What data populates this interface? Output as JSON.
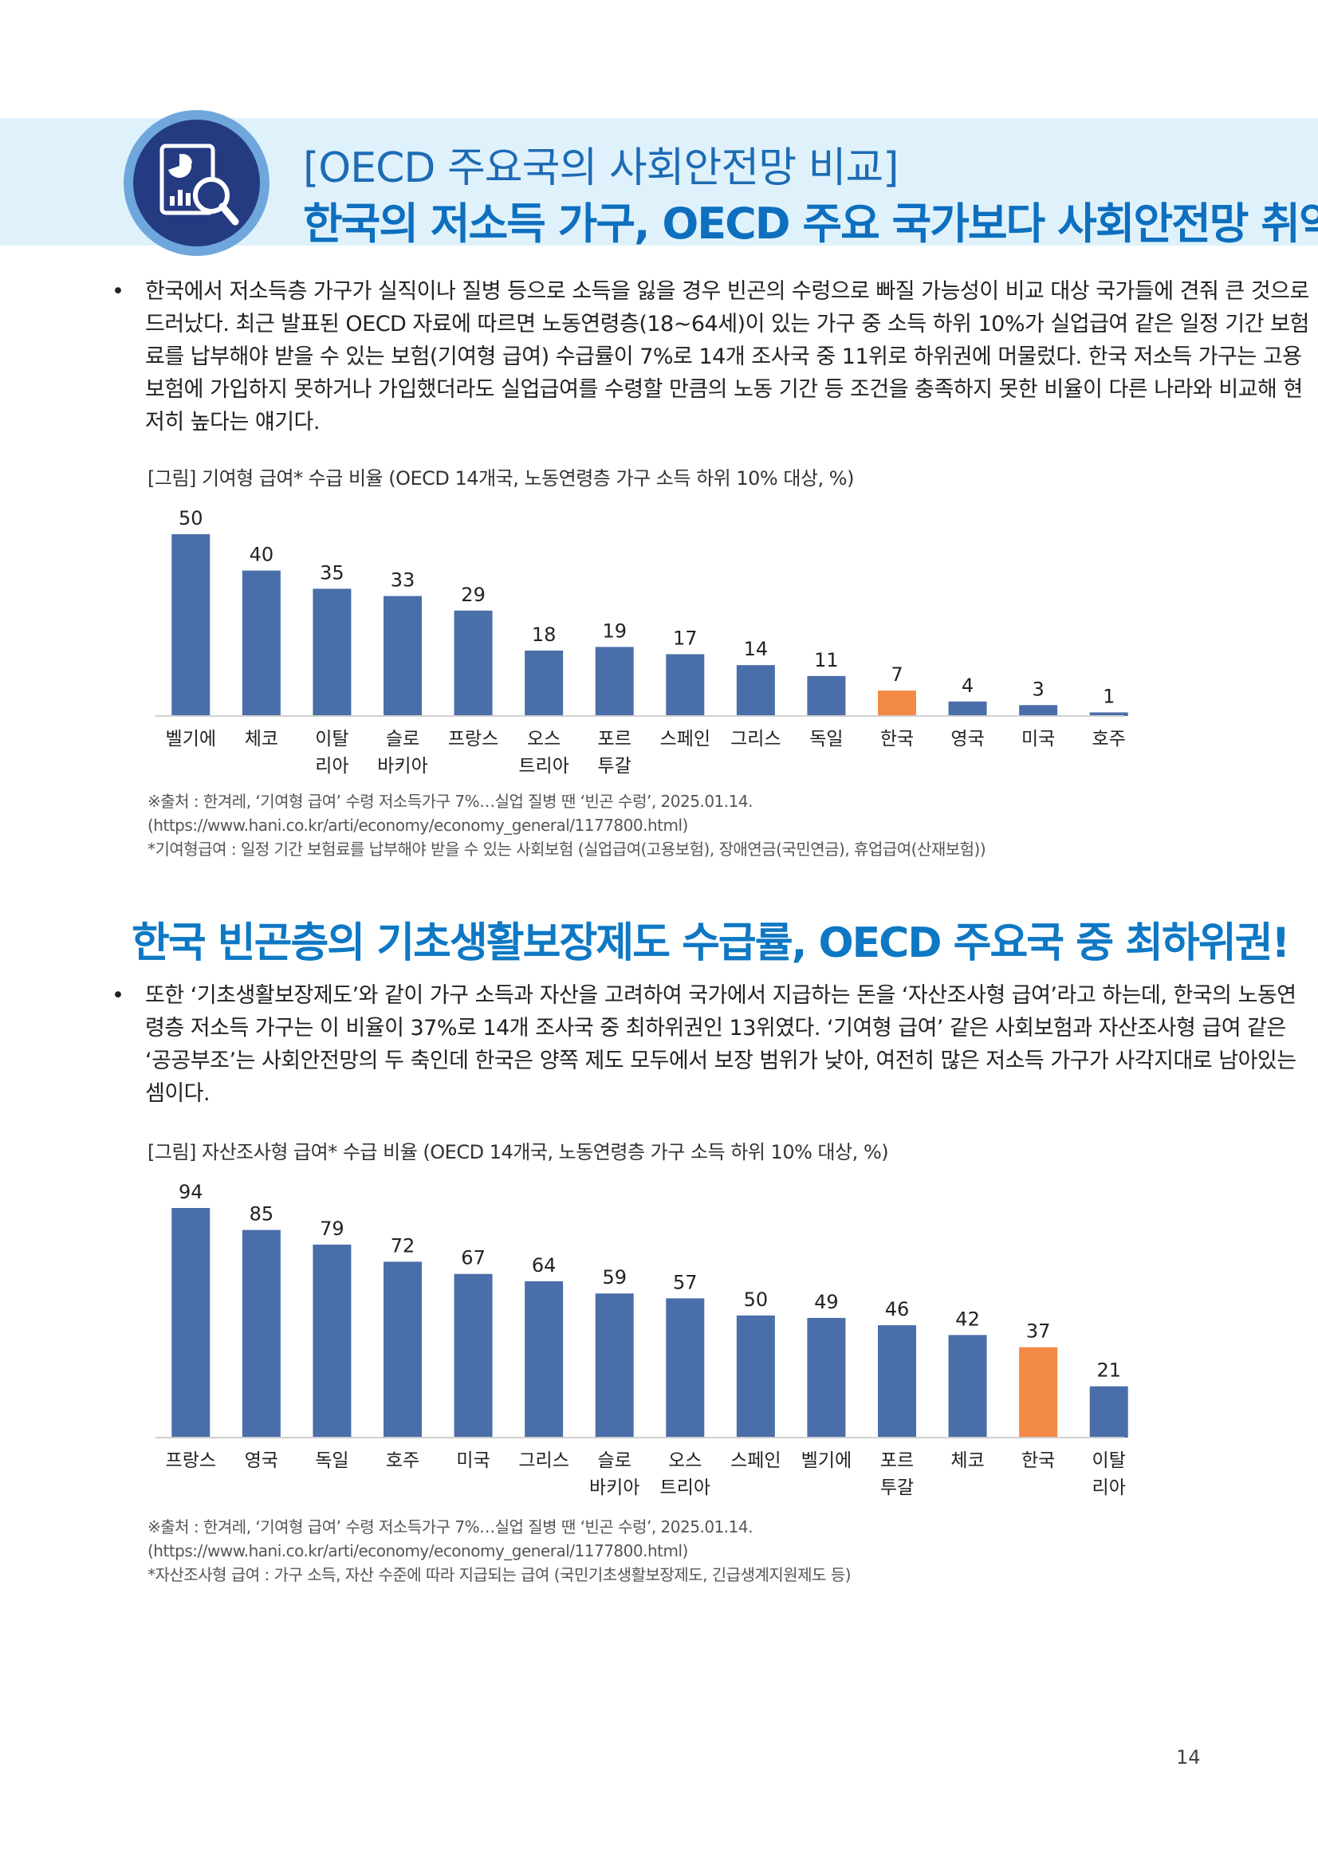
{
  "header": {
    "subtitle": "[OECD 주요국의 사회안전망 비교]",
    "title": "한국의 저소득 가구, OECD 주요 국가보다 사회안전망 취약!"
  },
  "section1": {
    "bullet": "•",
    "paragraph": "한국에서 저소득층 가구가 실직이나 질병 등으로 소득을 잃을 경우 빈곤의 수렁으로 빠질 가능성이 비교 대상 국가들에 견줘 큰 것으로 드러났다. 최근 발표된 OECD 자료에 따르면 노동연령층(18~64세)이 있는 가구 중 소득 하위 10%가 실업급여 같은 일정 기간 보험료를 납부해야 받을 수 있는 보험(기여형 급여) 수급률이 7%로 14개 조사국 중 11위로 하위권에 머물렀다. 한국 저소득 가구는 고용보험에 가입하지 못하거나 가입했더라도 실업급여를 수령할 만큼의 노동 기간 등 조건을 충족하지 못한 비율이 다른 나라와 비교해 현저히 높다는 얘기다.",
    "figure_title": "[그림] 기여형 급여* 수급 비율 (OECD 14개국, 노동연령층 가구 소득 하위 10% 대상, %)",
    "source": "※출처 : 한겨레, ‘기여형 급여’ 수령 저소득가구 7%…실업 질병 땐 ‘빈곤 수렁’, 2025.01.14. (https://www.hani.co.kr/arti/economy/economy_general/1177800.html)",
    "footnote": "*기여형급여 : 일정 기간 보험료를 납부해야 받을 수 있는 사회보험 (실업급여(고용보험), 장애연금(국민연금), 휴업급여(산재보험))"
  },
  "section2": {
    "title": "한국 빈곤층의 기초생활보장제도 수급률, OECD 주요국 중 최하위권!",
    "bullet": "•",
    "paragraph": "또한 ‘기초생활보장제도’와 같이 가구 소득과 자산을 고려하여 국가에서 지급하는 돈을 ‘자산조사형 급여’라고 하는데, 한국의 노동연령층 저소득 가구는 이 비율이 37%로 14개 조사국 중 최하위권인 13위였다. ‘기여형 급여’ 같은 사회보험과 자산조사형 급여 같은 ‘공공부조’는 사회안전망의 두 축인데 한국은 양쪽 제도 모두에서 보장 범위가 낮아, 여전히 많은 저소득 가구가 사각지대로 남아있는 셈이다.",
    "figure_title": "[그림] 자산조사형 급여* 수급 비율 (OECD 14개국, 노동연령층 가구 소득 하위 10% 대상, %)",
    "source": "※출처 : 한겨레, ‘기여형 급여’ 수령 저소득가구 7%…실업 질병 땐 ‘빈곤 수렁’, 2025.01.14. (https://www.hani.co.kr/arti/economy/economy_general/1177800.html)",
    "footnote": "*자산조사형 급여 : 가구 소득, 자산 수준에 따라 지급되는 급여 (국민기초생활보장제도, 긴급생계지원제도 등)"
  },
  "page_number": "14",
  "colors": {
    "bar": "#4a6ea9",
    "highlight": "#f28a45",
    "axis": "#d0d0d0"
  },
  "icons": {
    "badge": "report-search-icon"
  },
  "chart_data": [
    {
      "type": "bar",
      "categories": [
        [
          "벨기에"
        ],
        [
          "체코"
        ],
        [
          "이탈",
          "리아"
        ],
        [
          "슬로",
          "바키아"
        ],
        [
          "프랑스"
        ],
        [
          "오스",
          "트리아"
        ],
        [
          "포르",
          "투갈"
        ],
        [
          "스페인"
        ],
        [
          "그리스"
        ],
        [
          "독일"
        ],
        [
          "한국"
        ],
        [
          "영국"
        ],
        [
          "미국"
        ],
        [
          "호주"
        ]
      ],
      "values": [
        50,
        40,
        35,
        33,
        29,
        18,
        19,
        17,
        14,
        11,
        7,
        4,
        3,
        1
      ],
      "highlight_index": 10,
      "ylim": [
        0,
        50
      ],
      "data_labels": true
    },
    {
      "type": "bar",
      "categories": [
        [
          "프랑스"
        ],
        [
          "영국"
        ],
        [
          "독일"
        ],
        [
          "호주"
        ],
        [
          "미국"
        ],
        [
          "그리스"
        ],
        [
          "슬로",
          "바키아"
        ],
        [
          "오스",
          "트리아"
        ],
        [
          "스페인"
        ],
        [
          "벨기에"
        ],
        [
          "포르",
          "투갈"
        ],
        [
          "체코"
        ],
        [
          "한국"
        ],
        [
          "이탈",
          "리아"
        ]
      ],
      "values": [
        94,
        85,
        79,
        72,
        67,
        64,
        59,
        57,
        50,
        49,
        46,
        42,
        37,
        21
      ],
      "highlight_index": 12,
      "ylim": [
        0,
        94
      ],
      "data_labels": true
    }
  ]
}
